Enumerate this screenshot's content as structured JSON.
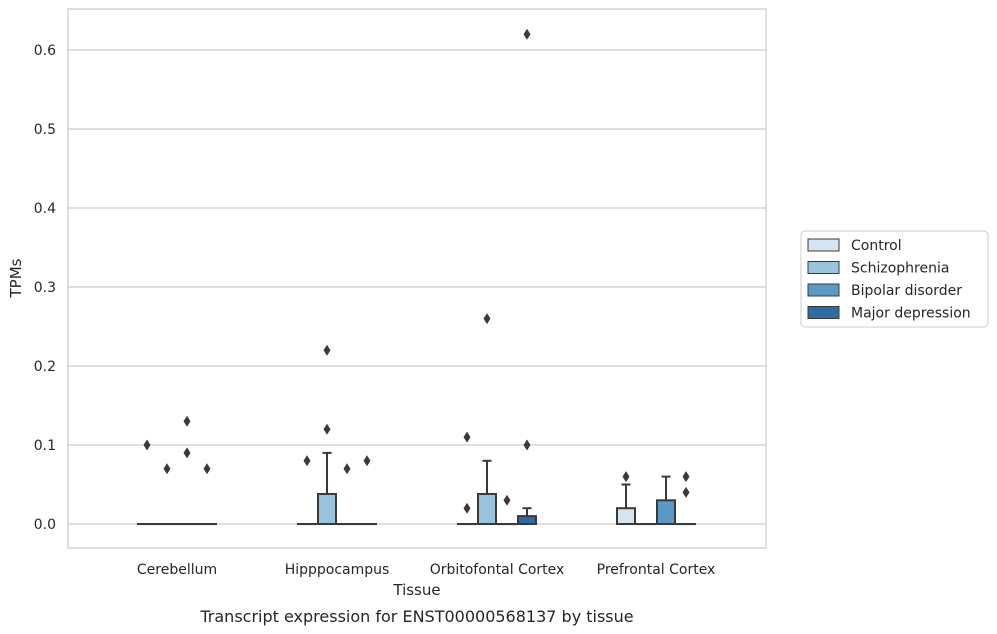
{
  "chart_data": {
    "type": "box",
    "title": "",
    "caption": "Transcript expression for ENST00000568137 by tissue",
    "xlabel": "Tissue",
    "ylabel": "TPMs",
    "ylim": [
      -0.03,
      0.655
    ],
    "yticks": [
      0.0,
      0.1,
      0.2,
      0.3,
      0.4,
      0.5,
      0.6
    ],
    "ytick_labels": [
      "0.0",
      "0.1",
      "0.2",
      "0.3",
      "0.4",
      "0.5",
      "0.6"
    ],
    "grid": "horizontal",
    "legend_position": "right",
    "categories": [
      "Cerebellum",
      "Hipppocampus",
      "Orbitofontal Cortex",
      "Prefrontal Cortex"
    ],
    "series": [
      {
        "name": "Control",
        "color": "#d4e4f1",
        "boxes": [
          {
            "q1": 0,
            "median": 0,
            "q3": 0,
            "whisker_low": 0,
            "whisker_high": 0,
            "outliers": [
              0.1
            ]
          },
          {
            "q1": 0,
            "median": 0,
            "q3": 0,
            "whisker_low": 0,
            "whisker_high": 0,
            "outliers": [
              0.08
            ]
          },
          {
            "q1": 0,
            "median": 0,
            "q3": 0,
            "whisker_low": 0,
            "whisker_high": 0,
            "outliers": [
              0.11,
              0.02
            ]
          },
          {
            "q1": 0,
            "median": 0,
            "q3": 0.02,
            "whisker_low": 0,
            "whisker_high": 0.05,
            "outliers": [
              0.06
            ]
          }
        ]
      },
      {
        "name": "Schizophrenia",
        "color": "#9ac3dd",
        "boxes": [
          {
            "q1": 0,
            "median": 0,
            "q3": 0,
            "whisker_low": 0,
            "whisker_high": 0,
            "outliers": [
              0.07
            ]
          },
          {
            "q1": 0,
            "median": 0,
            "q3": 0.038,
            "whisker_low": 0,
            "whisker_high": 0.09,
            "outliers": [
              0.12,
              0.22
            ]
          },
          {
            "q1": 0,
            "median": 0,
            "q3": 0.038,
            "whisker_low": 0,
            "whisker_high": 0.08,
            "outliers": [
              0.26
            ]
          },
          {
            "q1": 0,
            "median": 0,
            "q3": 0,
            "whisker_low": 0,
            "whisker_high": 0,
            "outliers": []
          }
        ]
      },
      {
        "name": "Bipolar disorder",
        "color": "#5b9ac7",
        "boxes": [
          {
            "q1": 0,
            "median": 0,
            "q3": 0,
            "whisker_low": 0,
            "whisker_high": 0,
            "outliers": [
              0.09,
              0.13
            ]
          },
          {
            "q1": 0,
            "median": 0,
            "q3": 0,
            "whisker_low": 0,
            "whisker_high": 0,
            "outliers": [
              0.07
            ]
          },
          {
            "q1": 0,
            "median": 0,
            "q3": 0,
            "whisker_low": 0,
            "whisker_high": 0,
            "outliers": [
              0.03
            ]
          },
          {
            "q1": 0,
            "median": 0,
            "q3": 0.03,
            "whisker_low": 0,
            "whisker_high": 0.06,
            "outliers": []
          }
        ]
      },
      {
        "name": "Major depression",
        "color": "#2f6aa5",
        "boxes": [
          {
            "q1": 0,
            "median": 0,
            "q3": 0,
            "whisker_low": 0,
            "whisker_high": 0,
            "outliers": [
              0.07
            ]
          },
          {
            "q1": 0,
            "median": 0,
            "q3": 0,
            "whisker_low": 0,
            "whisker_high": 0,
            "outliers": [
              0.08
            ]
          },
          {
            "q1": 0,
            "median": 0,
            "q3": 0.01,
            "whisker_low": 0,
            "whisker_high": 0.02,
            "outliers": [
              0.1,
              0.62
            ]
          },
          {
            "q1": 0,
            "median": 0,
            "q3": 0,
            "whisker_low": 0,
            "whisker_high": 0,
            "outliers": [
              0.04,
              0.06
            ]
          }
        ]
      }
    ]
  }
}
